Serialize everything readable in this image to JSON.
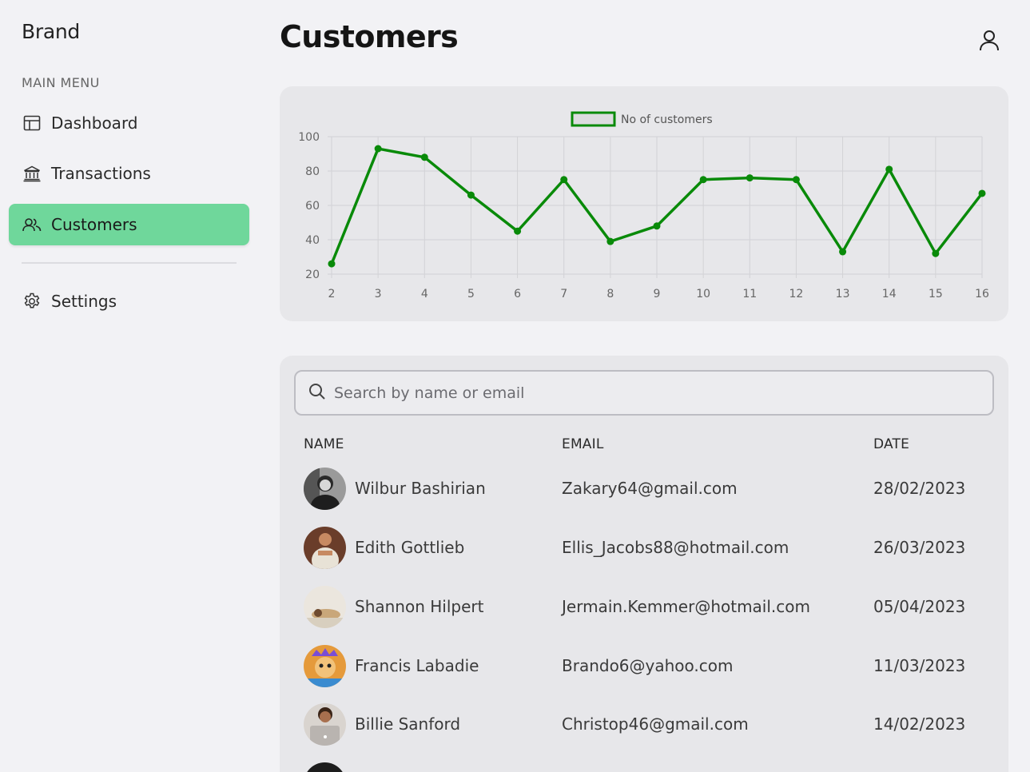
{
  "sidebar": {
    "brand": "Brand",
    "menu_title": "MAIN MENU",
    "items": [
      {
        "label": "Dashboard",
        "icon": "dashboard-icon"
      },
      {
        "label": "Transactions",
        "icon": "bank-icon"
      },
      {
        "label": "Customers",
        "icon": "users-icon",
        "active": true
      },
      {
        "label": "Settings",
        "icon": "gear-icon"
      }
    ]
  },
  "header": {
    "title": "Customers",
    "user_icon": "user-icon"
  },
  "colors": {
    "accent": "#6fd79b",
    "series": "#098a09",
    "background": "#f2f2f5",
    "card": "#e7e7ea"
  },
  "chart_data": {
    "type": "line",
    "title": "",
    "xlabel": "",
    "ylabel": "",
    "legend_position": "top-center",
    "grid": true,
    "x": [
      2,
      3,
      4,
      5,
      6,
      7,
      8,
      9,
      10,
      11,
      12,
      13,
      14,
      15,
      16
    ],
    "series": [
      {
        "name": "No of customers",
        "values": [
          26,
          93,
          88,
          66,
          45,
          75,
          39,
          48,
          75,
          76,
          75,
          33,
          81,
          32,
          67
        ]
      }
    ],
    "ylim": [
      20,
      100
    ],
    "yticks": [
      20,
      40,
      60,
      80,
      100
    ],
    "xlim": [
      2,
      16
    ]
  },
  "search": {
    "placeholder": "Search by name or email",
    "value": ""
  },
  "table": {
    "columns": [
      "NAME",
      "EMAIL",
      "DATE"
    ],
    "rows": [
      {
        "name": "Wilbur Bashirian",
        "email": "Zakary64@gmail.com",
        "date": "28/02/2023"
      },
      {
        "name": "Edith Gottlieb",
        "email": "Ellis_Jacobs88@hotmail.com",
        "date": "26/03/2023"
      },
      {
        "name": "Shannon Hilpert",
        "email": "Jermain.Kemmer@hotmail.com",
        "date": "05/04/2023"
      },
      {
        "name": "Francis Labadie",
        "email": "Brando6@yahoo.com",
        "date": "11/03/2023"
      },
      {
        "name": "Billie Sanford",
        "email": "Christop46@gmail.com",
        "date": "14/02/2023"
      }
    ]
  }
}
